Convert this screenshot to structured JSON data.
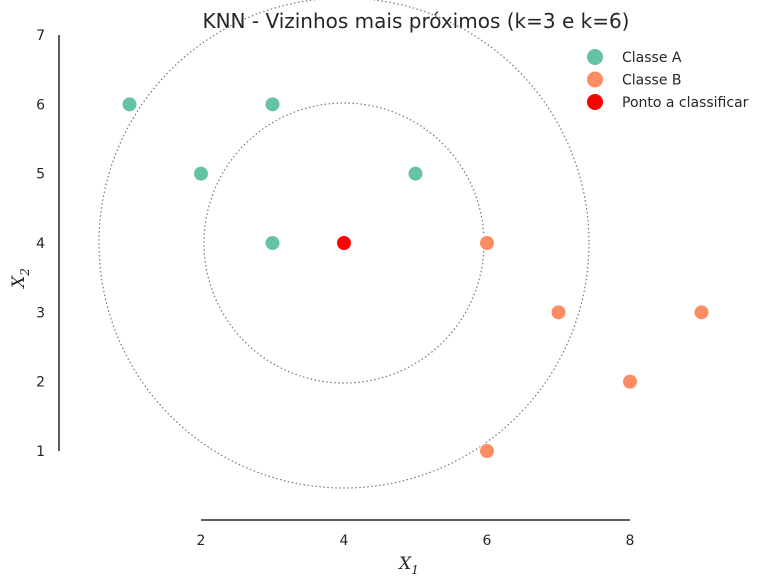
{
  "chart_data": {
    "type": "scatter",
    "title": "KNN - Vizinhos mais próximos (k=3 e k=6)",
    "xlabel": "X",
    "xlabel_sub": "1",
    "ylabel": "X",
    "ylabel_sub": "2",
    "xlim": [
      2,
      8
    ],
    "ylim": [
      1,
      7
    ],
    "xticks": [
      2,
      4,
      6,
      8
    ],
    "yticks": [
      1,
      2,
      3,
      4,
      5,
      6,
      7
    ],
    "grid": false,
    "legend_position": "top-right",
    "series": [
      {
        "name": "Classe A",
        "color": "#66c2a5",
        "points": [
          [
            1,
            6
          ],
          [
            3,
            6
          ],
          [
            2,
            5
          ],
          [
            5,
            5
          ],
          [
            3,
            4
          ]
        ]
      },
      {
        "name": "Classe B",
        "color": "#fc8d62",
        "points": [
          [
            6,
            4
          ],
          [
            7,
            3
          ],
          [
            9,
            3
          ],
          [
            8,
            2
          ],
          [
            6,
            1
          ]
        ]
      },
      {
        "name": "Ponto a classificar",
        "color": "#ff0000",
        "points": [
          [
            4,
            4
          ]
        ]
      }
    ],
    "circles": [
      {
        "center": [
          4,
          4
        ],
        "radius": 2,
        "style": "dotted",
        "color": "#777777"
      },
      {
        "center": [
          4,
          4
        ],
        "radius": 3.5,
        "style": "dotted",
        "color": "#777777"
      }
    ]
  }
}
